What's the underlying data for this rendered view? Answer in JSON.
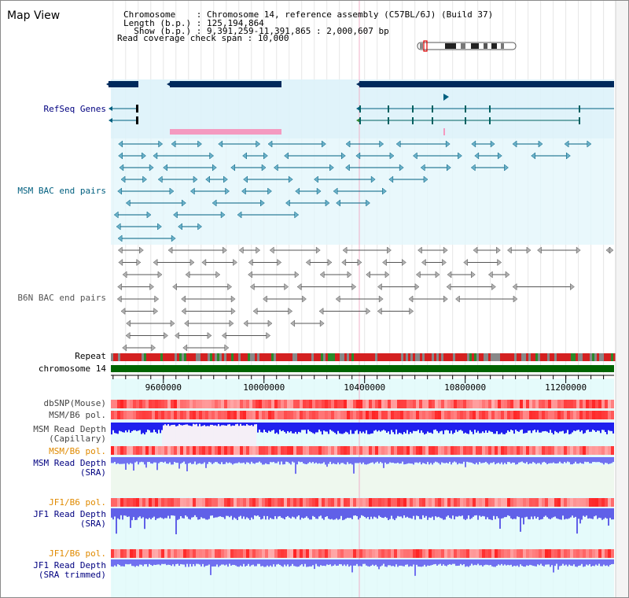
{
  "app": {
    "title": "Map View"
  },
  "info": {
    "lines": [
      "Chromosome    : Chromosome 14, reference assembly (C57BL/6J) (Build 37)",
      "Length (b.p.) : 125,194,864",
      "  Show (b.p.) : 9,391,259-11,391,865 : 2,000,607 bp",
      "Read coverage check span : 10,000"
    ]
  },
  "tracks": {
    "refseq": "RefSeq Genes",
    "msm_bac": "MSM BAC end pairs",
    "b6n_bac": "B6N BAC end pairs",
    "repeat": "Repeat",
    "chromosome": "chromosome 14",
    "dbsnp": "dbSNP(Mouse)",
    "msm_pol1": "MSM/B6 pol.",
    "msm_depth_cap": [
      "MSM Read Depth",
      "(Capillary)"
    ],
    "msm_pol2": "MSM/B6 pol.",
    "msm_depth_sra": [
      "MSM Read Depth",
      "(SRA)"
    ],
    "jf1_pol1": "JF1/B6 pol.",
    "jf1_depth_sra": [
      "JF1 Read Depth",
      "(SRA)"
    ],
    "jf1_pol2": "JF1/B6 pol.",
    "jf1_depth_trim": [
      "JF1 Read Depth",
      "(SRA trimmed)"
    ]
  },
  "axis": {
    "start": 9391259,
    "end": 11391865,
    "ticks": [
      {
        "value": 9600000,
        "label": "9600000"
      },
      {
        "value": 10000000,
        "label": "10000000"
      },
      {
        "value": 10400000,
        "label": "10400000"
      },
      {
        "value": 10800000,
        "label": "10800000"
      },
      {
        "value": 11200000,
        "label": "11200000"
      }
    ]
  },
  "colors": {
    "navy": "#002a5c",
    "bac_blue": "#006080",
    "b6n_gray": "#555555",
    "msm_label": "#005f7f",
    "user_label": "#000080",
    "orange_label": "#e08a00",
    "chromosome_green": "#006400",
    "depth_blue": "#2020ee",
    "depth_sra": "#7070f0",
    "pink": "#f49ac0"
  }
}
